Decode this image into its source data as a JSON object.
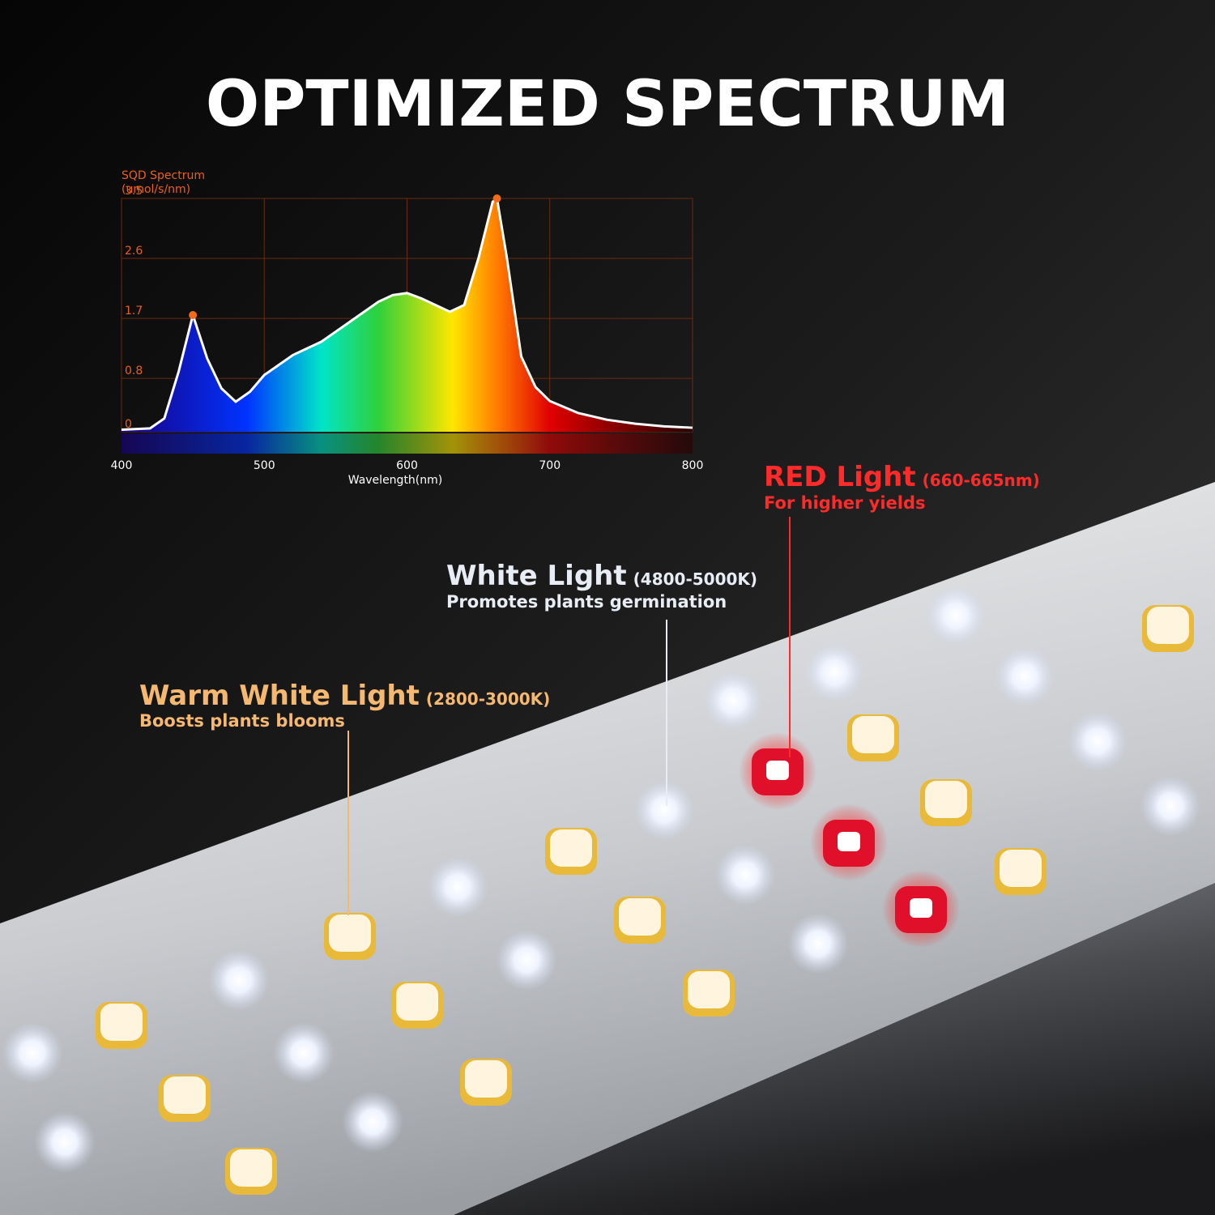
{
  "header": {
    "title": "OPTIMIZED SPECTRUM"
  },
  "chart_data": {
    "type": "area",
    "title": "SQD Spectrum",
    "y_label": "(umol/s/nm)",
    "x_label": "Wavelength(nm)",
    "x": [
      400,
      420,
      430,
      440,
      450,
      460,
      470,
      480,
      490,
      500,
      510,
      520,
      530,
      540,
      550,
      560,
      570,
      580,
      590,
      600,
      610,
      620,
      630,
      640,
      650,
      660,
      663,
      670,
      680,
      690,
      700,
      720,
      740,
      760,
      780,
      800
    ],
    "values": [
      0.03,
      0.05,
      0.2,
      0.9,
      1.75,
      1.1,
      0.65,
      0.45,
      0.6,
      0.85,
      1.0,
      1.15,
      1.25,
      1.35,
      1.5,
      1.65,
      1.8,
      1.95,
      2.05,
      2.08,
      2.0,
      1.9,
      1.8,
      1.9,
      2.6,
      3.45,
      3.5,
      2.6,
      1.13,
      0.67,
      0.46,
      0.28,
      0.18,
      0.12,
      0.08,
      0.06
    ],
    "highlights": [
      450,
      663
    ],
    "highlight_color": "#f26a1b",
    "line_color": "#ffffff",
    "xlim": [
      400,
      800
    ],
    "xticks": [
      400,
      500,
      600,
      700,
      800
    ],
    "ylim": [
      0,
      3.5
    ],
    "yticks": [
      0,
      0.8,
      1.7,
      2.6,
      3.5
    ],
    "grid": true,
    "grid_color": "#6b2a10"
  },
  "callouts": [
    {
      "title": "RED Light",
      "range": "(660-665nm)",
      "note": "For higher yields",
      "color": "#ff2a2a"
    },
    {
      "title": "White Light",
      "range": "(4800-5000K)",
      "note": "Promotes plants germination",
      "color": "#e8ecf4"
    },
    {
      "title": "Warm White Light",
      "range": "(2800-3000K)",
      "note": "Boosts plants blooms",
      "color": "#f5b870"
    }
  ]
}
